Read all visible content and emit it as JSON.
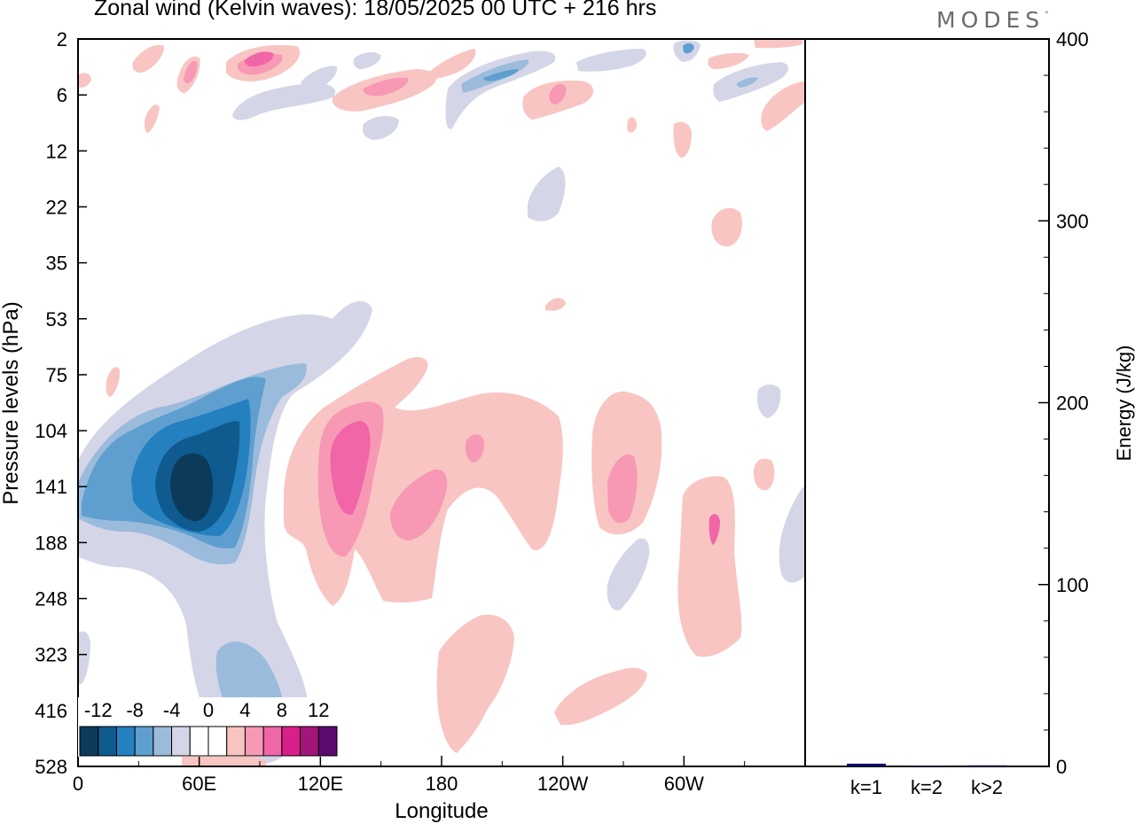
{
  "chart_data": [
    {
      "type": "heatmap",
      "title": "Zonal wind (Kelvin waves):  18/05/2025  00 UTC  + 216 hrs",
      "xlabel": "Longitude",
      "ylabel": "Pressure levels (hPa)",
      "x_ticks": [
        "0",
        "60E",
        "120E",
        "180",
        "120W",
        "60W"
      ],
      "x_tick_values": [
        0,
        60,
        120,
        180,
        240,
        300
      ],
      "xlim": [
        0,
        360
      ],
      "y_ticks": [
        "2",
        "6",
        "12",
        "22",
        "35",
        "53",
        "75",
        "104",
        "141",
        "188",
        "248",
        "323",
        "416",
        "528"
      ],
      "y_scale": "log",
      "y_reversed": true,
      "colorbar": {
        "tick_labels": [
          "-12",
          "-8",
          "-4",
          "0",
          "4",
          "8",
          "12"
        ],
        "levels": [
          -14,
          -12,
          -10,
          -8,
          -6,
          -4,
          -2,
          0,
          2,
          4,
          6,
          8,
          10,
          12,
          14
        ],
        "colors": [
          "#0b3a5a",
          "#0f5a8e",
          "#2580bf",
          "#5e9fcf",
          "#9bbbdc",
          "#d4d6e8",
          "#ffffff",
          "#ffffff",
          "#f8c5c2",
          "#f798b4",
          "#f066a6",
          "#d81f8b",
          "#a3157a",
          "#5b0a6e"
        ]
      },
      "features": [
        {
          "kind": "negative",
          "longitude_range": [
            0,
            90
          ],
          "pressure_range": [
            60,
            450
          ],
          "min_value": -14,
          "center_lon": 55,
          "center_p": 141
        },
        {
          "kind": "positive",
          "longitude_range": [
            100,
            150
          ],
          "pressure_range": [
            75,
            250
          ],
          "max_value": 8,
          "center_lon": 125,
          "center_p": 130
        },
        {
          "kind": "positive",
          "longitude_range": [
            150,
            240
          ],
          "pressure_range": [
            80,
            250
          ],
          "max_value": 6,
          "center_lon": 170,
          "center_p": 150
        },
        {
          "kind": "positive",
          "longitude_range": [
            255,
            290
          ],
          "pressure_range": [
            100,
            200
          ],
          "max_value": 6,
          "center_lon": 270,
          "center_p": 150
        },
        {
          "kind": "positive",
          "longitude_range": [
            295,
            325
          ],
          "pressure_range": [
            130,
            330
          ],
          "max_value": 5,
          "center_lon": 315,
          "center_p": 180
        },
        {
          "kind": "positive",
          "longitude_range": [
            180,
            220
          ],
          "pressure_range": [
            300,
            520
          ],
          "max_value": 3
        },
        {
          "kind": "upper-level mixed",
          "longitude_range": [
            0,
            360
          ],
          "pressure_range": [
            2,
            10
          ],
          "min_value": -6,
          "max_value": 9
        }
      ]
    },
    {
      "type": "bar",
      "ylabel": "Energy (J/kg)",
      "categories": [
        "k=1",
        "k=2",
        "k>2"
      ],
      "values": [
        1.5,
        0.5,
        0.6
      ],
      "ylim": [
        0,
        400
      ],
      "y_ticks": [
        "0",
        "100",
        "200",
        "300",
        "400"
      ],
      "y_tick_values": [
        0,
        100,
        200,
        300,
        400
      ],
      "bar_color": "#0d0d6b"
    }
  ],
  "header": {
    "brand": "MODES",
    "brand_mark": "°"
  }
}
